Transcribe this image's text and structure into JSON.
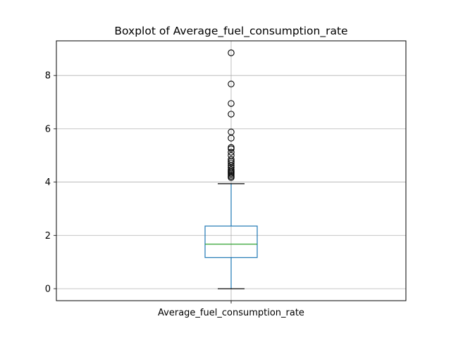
{
  "chart_data": {
    "type": "boxplot",
    "title": "Boxplot of Average_fuel_consumption_rate",
    "xlabel": "",
    "ylabel": "",
    "categories": [
      "Average_fuel_consumption_rate"
    ],
    "ylim": [
      -0.45,
      9.3
    ],
    "yticks": [
      0,
      2,
      4,
      6,
      8
    ],
    "ytick_labels": [
      "0",
      "2",
      "4",
      "6",
      "8"
    ],
    "grid": true,
    "box": {
      "whisker_low": 0.0,
      "q1": 1.17,
      "median": 1.67,
      "q3": 2.35,
      "whisker_high": 3.94
    },
    "outliers": [
      4.17,
      4.22,
      4.28,
      4.33,
      4.38,
      4.42,
      4.47,
      4.55,
      4.63,
      4.72,
      4.78,
      4.85,
      5.0,
      5.12,
      5.25,
      5.3,
      5.65,
      5.88,
      6.55,
      6.95,
      7.68,
      8.85
    ],
    "colors": {
      "box": "#1f77b4",
      "median": "#2ca02c",
      "whisker_cap": "#000000",
      "outlier_edge": "#000000",
      "grid": "#b0b0b0"
    }
  }
}
